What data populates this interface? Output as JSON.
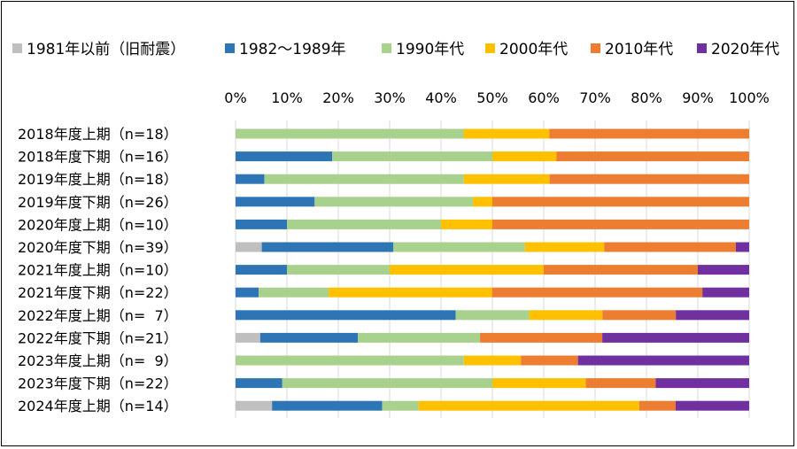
{
  "chart_data": {
    "type": "bar",
    "orientation": "horizontal",
    "stacked": "percent",
    "title": "",
    "xlabel": "",
    "ylabel": "",
    "xlim": [
      0,
      100
    ],
    "x_ticks": [
      "0%",
      "10%",
      "20%",
      "30%",
      "40%",
      "50%",
      "60%",
      "70%",
      "80%",
      "90%",
      "100%"
    ],
    "grid": "vertical",
    "legend_position": "top",
    "categories": [
      "2018年度上期（n=18）",
      "2018年度下期（n=16）",
      "2019年度上期（n=18）",
      "2019年度下期（n=26）",
      "2020年度上期（n=10）",
      "2020年度下期（n=39）",
      "2021年度上期（n=10）",
      "2021年度下期（n=22）",
      "2022年度上期（n=  7）",
      "2022年度下期（n=21）",
      "2023年度上期（n=  9）",
      "2023年度下期（n=22）",
      "2024年度上期（n=14）"
    ],
    "series": [
      {
        "name": "1981年以前（旧耐震）",
        "color": "#bfbfbf",
        "values": [
          0,
          0,
          0,
          0,
          0,
          5.1,
          0,
          0,
          0,
          4.8,
          0,
          0,
          7.1
        ]
      },
      {
        "name": "1982～1989年",
        "color": "#2e75b6",
        "values": [
          0,
          18.8,
          5.6,
          15.4,
          10,
          25.6,
          10,
          4.5,
          42.9,
          19.0,
          0,
          9.1,
          21.4
        ]
      },
      {
        "name": "1990年代",
        "color": "#a9d18e",
        "values": [
          44.4,
          31.2,
          38.9,
          30.8,
          30,
          25.6,
          20,
          13.6,
          14.3,
          23.8,
          44.4,
          40.9,
          7.1
        ]
      },
      {
        "name": "2000年代",
        "color": "#ffc000",
        "values": [
          16.7,
          12.5,
          16.7,
          3.8,
          10,
          15.4,
          30,
          31.8,
          14.3,
          0,
          11.1,
          18.2,
          42.9
        ]
      },
      {
        "name": "2010年代",
        "color": "#ed7d31",
        "values": [
          38.9,
          37.5,
          38.9,
          50.0,
          50,
          25.6,
          30,
          40.9,
          14.3,
          23.8,
          11.1,
          13.6,
          7.1
        ]
      },
      {
        "name": "2020年代",
        "color": "#7030a0",
        "values": [
          0,
          0,
          0,
          0,
          0,
          2.6,
          10,
          9.1,
          14.3,
          28.6,
          33.3,
          18.2,
          14.3
        ]
      }
    ]
  }
}
